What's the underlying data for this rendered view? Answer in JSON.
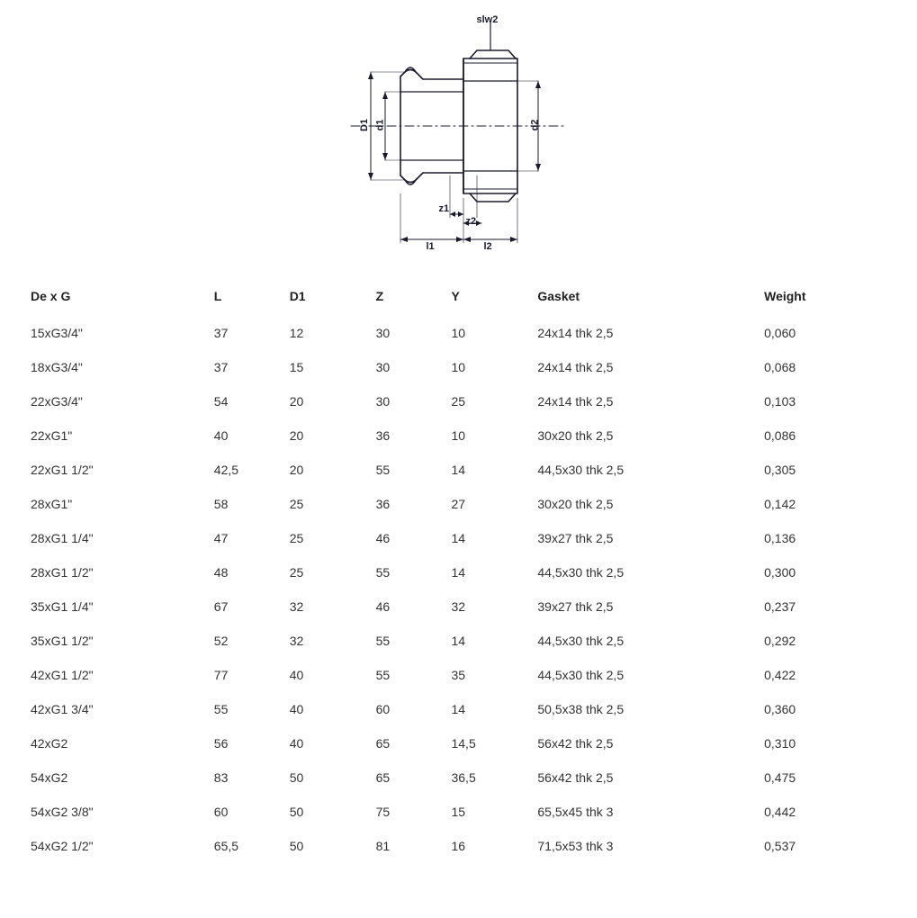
{
  "diagram": {
    "labels": {
      "slw2": "slw2",
      "D1": "D1",
      "d1": "d1",
      "d2": "d2",
      "z1": "z1",
      "z2": "z2",
      "l1": "l1",
      "l2": "l2"
    },
    "stroke_color": "#1a1a2e",
    "stroke_width": 1.6,
    "label_fontsize": 11,
    "label_fontweight": "bold"
  },
  "table": {
    "columns": [
      "De x G",
      "L",
      "D1",
      "Z",
      "Y",
      "Gasket",
      "Weight"
    ],
    "rows": [
      [
        "15xG3/4\"",
        "37",
        "12",
        "30",
        "10",
        "24x14 thk 2,5",
        "0,060"
      ],
      [
        "18xG3/4\"",
        "37",
        "15",
        "30",
        "10",
        "24x14 thk 2,5",
        "0,068"
      ],
      [
        "22xG3/4\"",
        "54",
        "20",
        "30",
        "25",
        "24x14 thk 2,5",
        "0,103"
      ],
      [
        "22xG1\"",
        "40",
        "20",
        "36",
        "10",
        "30x20 thk 2,5",
        "0,086"
      ],
      [
        "22xG1 1/2\"",
        "42,5",
        "20",
        "55",
        "14",
        "44,5x30 thk 2,5",
        "0,305"
      ],
      [
        "28xG1\"",
        "58",
        "25",
        "36",
        "27",
        "30x20 thk 2,5",
        "0,142"
      ],
      [
        "28xG1 1/4\"",
        "47",
        "25",
        "46",
        "14",
        "39x27 thk 2,5",
        "0,136"
      ],
      [
        "28xG1 1/2\"",
        "48",
        "25",
        "55",
        "14",
        "44,5x30 thk 2,5",
        "0,300"
      ],
      [
        "35xG1 1/4\"",
        "67",
        "32",
        "46",
        "32",
        "39x27 thk 2,5",
        "0,237"
      ],
      [
        "35xG1 1/2\"",
        "52",
        "32",
        "55",
        "14",
        "44,5x30 thk 2,5",
        "0,292"
      ],
      [
        "42xG1 1/2\"",
        "77",
        "40",
        "55",
        "35",
        "44,5x30 thk 2,5",
        "0,422"
      ],
      [
        "42xG1 3/4\"",
        "55",
        "40",
        "60",
        "14",
        "50,5x38 thk 2,5",
        "0,360"
      ],
      [
        "42xG2",
        "56",
        "40",
        "65",
        "14,5",
        "56x42 thk 2,5",
        "0,310"
      ],
      [
        "54xG2",
        "83",
        "50",
        "65",
        "36,5",
        "56x42 thk 2,5",
        "0,475"
      ],
      [
        "54xG2 3/8\"",
        "60",
        "50",
        "75",
        "15",
        "65,5x45 thk 3",
        "0,442"
      ],
      [
        "54xG2 1/2\"",
        "65,5",
        "50",
        "81",
        "16",
        "71,5x53 thk 3",
        "0,537"
      ]
    ],
    "header_fontweight": "600",
    "cell_fontsize": 14,
    "text_color": "#333"
  }
}
